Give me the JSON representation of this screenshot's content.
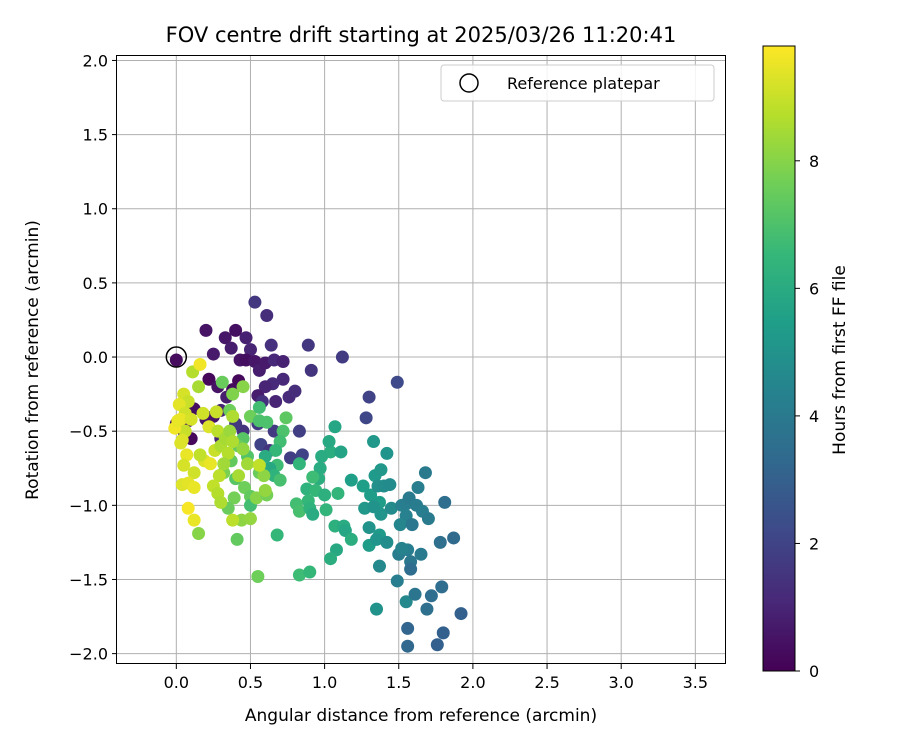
{
  "chart_data": {
    "type": "scatter",
    "title": "FOV centre drift starting at 2025/03/26 11:20:41",
    "xlabel": "Angular distance from reference (arcmin)",
    "ylabel": "Rotation from reference (arcmin)",
    "xlim": [
      -0.4,
      3.7
    ],
    "ylim": [
      -2.07,
      2.03
    ],
    "xticks": [
      0.0,
      0.5,
      1.0,
      1.5,
      2.0,
      2.5,
      3.0,
      3.5
    ],
    "xtick_labels": [
      "0.0",
      "0.5",
      "1.0",
      "1.5",
      "2.0",
      "2.5",
      "3.0",
      "3.5"
    ],
    "yticks": [
      2.0,
      1.5,
      1.0,
      0.5,
      0.0,
      -0.5,
      -1.0,
      -1.5,
      -2.0
    ],
    "ytick_labels": [
      "2.0",
      "1.5",
      "1.0",
      "0.5",
      "0.0",
      "−0.5",
      "−1.0",
      "−1.5",
      "−2.0"
    ],
    "grid": true,
    "legend": {
      "position": "top-right",
      "entries": [
        "Reference platepar"
      ]
    },
    "reference_point": {
      "name": "Reference platepar",
      "x": 0.0,
      "y": 0.0
    },
    "colorbar": {
      "label": "Hours from first FF file",
      "range": [
        0,
        9.8
      ],
      "ticks": [
        0,
        2,
        4,
        6,
        8
      ],
      "tick_labels": [
        "0",
        "2",
        "4",
        "6",
        "8"
      ],
      "colormap": "viridis"
    },
    "colormap_stops": [
      "#440154",
      "#482878",
      "#3e4989",
      "#31688e",
      "#26828e",
      "#1f9e89",
      "#35b779",
      "#6ece58",
      "#b5de2b",
      "#fde725"
    ],
    "points": [
      [
        0.0,
        -0.02,
        0.3
      ],
      [
        0.2,
        0.18,
        0.5
      ],
      [
        0.33,
        0.13,
        0.6
      ],
      [
        0.4,
        0.18,
        0.4
      ],
      [
        0.25,
        0.02,
        0.7
      ],
      [
        0.37,
        0.06,
        0.8
      ],
      [
        0.47,
        0.13,
        0.9
      ],
      [
        0.53,
        0.37,
        1.6
      ],
      [
        0.61,
        0.28,
        1.3
      ],
      [
        0.5,
        0.05,
        1.0
      ],
      [
        0.43,
        -0.02,
        0.5
      ],
      [
        0.47,
        -0.02,
        0.4
      ],
      [
        0.53,
        -0.03,
        0.6
      ],
      [
        0.56,
        -0.09,
        0.8
      ],
      [
        0.6,
        -0.04,
        0.7
      ],
      [
        0.64,
        0.08,
        1.4
      ],
      [
        0.66,
        -0.02,
        1.1
      ],
      [
        0.72,
        -0.03,
        0.9
      ],
      [
        0.91,
        -0.09,
        1.5
      ],
      [
        1.12,
        0.0,
        1.7
      ],
      [
        0.89,
        0.08,
        1.6
      ],
      [
        0.72,
        -0.15,
        1.1
      ],
      [
        0.65,
        -0.18,
        1.2
      ],
      [
        0.6,
        -0.2,
        1.0
      ],
      [
        0.55,
        -0.26,
        0.8
      ],
      [
        0.76,
        -0.27,
        1.2
      ],
      [
        0.8,
        -0.23,
        1.3
      ],
      [
        0.67,
        -0.3,
        1.0
      ],
      [
        0.58,
        -0.3,
        1.4
      ],
      [
        0.42,
        -0.16,
        0.2
      ],
      [
        0.38,
        -0.22,
        0.3
      ],
      [
        0.22,
        -0.15,
        0.2
      ],
      [
        0.28,
        -0.2,
        0.5
      ],
      [
        0.3,
        -0.36,
        1.0
      ],
      [
        0.34,
        -0.27,
        0.8
      ],
      [
        0.2,
        -0.42,
        0.6
      ],
      [
        0.25,
        -0.4,
        0.5
      ],
      [
        0.12,
        -0.35,
        0.4
      ],
      [
        0.1,
        -0.55,
        0.2
      ],
      [
        0.05,
        -0.5,
        0.4
      ],
      [
        0.0,
        -0.45,
        0.3
      ],
      [
        0.08,
        -0.43,
        0.6
      ],
      [
        1.49,
        -0.17,
        2.2
      ],
      [
        1.3,
        -0.27,
        2.0
      ],
      [
        1.28,
        -0.41,
        2.1
      ],
      [
        0.66,
        -0.5,
        1.7
      ],
      [
        0.83,
        -0.5,
        1.8
      ],
      [
        0.57,
        -0.59,
        2.0
      ],
      [
        0.63,
        -0.63,
        1.5
      ],
      [
        0.77,
        -0.68,
        1.8
      ],
      [
        0.85,
        -0.66,
        2.0
      ],
      [
        0.55,
        -0.45,
        1.7
      ],
      [
        0.45,
        -0.5,
        1.5
      ],
      [
        0.3,
        -0.55,
        1.1
      ],
      [
        0.4,
        -0.45,
        1.6
      ],
      [
        0.5,
        -0.4,
        7.6
      ],
      [
        0.56,
        -0.43,
        7.0
      ],
      [
        0.74,
        -0.41,
        7.3
      ],
      [
        0.72,
        -0.5,
        7.0
      ],
      [
        0.7,
        -0.57,
        6.8
      ],
      [
        0.67,
        -0.63,
        6.5
      ],
      [
        0.68,
        -0.73,
        6.7
      ],
      [
        0.6,
        -0.67,
        6.0
      ],
      [
        0.63,
        -0.75,
        5.9
      ],
      [
        0.66,
        -0.8,
        6.3
      ],
      [
        0.7,
        -0.83,
        6.9
      ],
      [
        0.45,
        -0.55,
        7.2
      ],
      [
        0.42,
        -0.6,
        7.5
      ],
      [
        0.48,
        -0.67,
        7.1
      ],
      [
        0.37,
        -0.7,
        7.4
      ],
      [
        0.32,
        -0.78,
        7.8
      ],
      [
        0.4,
        -0.82,
        7.2
      ],
      [
        0.46,
        -0.88,
        7.6
      ],
      [
        0.5,
        -0.94,
        7.4
      ],
      [
        0.39,
        -0.95,
        7.7
      ],
      [
        0.35,
        -1.02,
        7.5
      ],
      [
        0.44,
        -1.1,
        8.1
      ],
      [
        0.5,
        -1.09,
        8.2
      ],
      [
        0.41,
        -1.23,
        7.4
      ],
      [
        0.36,
        -0.36,
        7.6
      ],
      [
        0.45,
        -0.2,
        8.0
      ],
      [
        0.38,
        -0.25,
        7.9
      ],
      [
        0.31,
        -0.17,
        7.5
      ],
      [
        0.56,
        -0.34,
        6.8
      ],
      [
        0.61,
        -0.44,
        7.0
      ],
      [
        0.5,
        -1.0,
        6.8
      ],
      [
        0.68,
        -1.2,
        6.5
      ],
      [
        0.55,
        -1.48,
        7.6
      ],
      [
        0.54,
        -0.95,
        8.0
      ],
      [
        0.56,
        -0.78,
        7.5
      ],
      [
        0.59,
        -0.8,
        8.1
      ],
      [
        0.61,
        -0.93,
        7.7
      ],
      [
        0.83,
        -0.72,
        6.4
      ],
      [
        0.97,
        -0.75,
        6.0
      ],
      [
        0.96,
        -0.82,
        6.1
      ],
      [
        1.04,
        -0.64,
        6.1
      ],
      [
        1.07,
        -0.47,
        5.8
      ],
      [
        1.03,
        -0.57,
        5.9
      ],
      [
        1.11,
        -0.64,
        5.7
      ],
      [
        0.98,
        -0.67,
        6.0
      ],
      [
        0.92,
        -0.81,
        6.7
      ],
      [
        0.88,
        -0.89,
        6.3
      ],
      [
        0.94,
        -0.9,
        6.5
      ],
      [
        1.0,
        -0.93,
        6.2
      ],
      [
        1.09,
        -0.92,
        6.4
      ],
      [
        0.89,
        -0.97,
        6.5
      ],
      [
        0.81,
        -0.99,
        6.8
      ],
      [
        0.83,
        -1.04,
        6.9
      ],
      [
        0.9,
        -1.02,
        6.3
      ],
      [
        0.92,
        -1.06,
        6.0
      ],
      [
        1.01,
        -1.03,
        6.4
      ],
      [
        1.07,
        -1.14,
        6.2
      ],
      [
        1.13,
        -1.14,
        6.0
      ],
      [
        1.14,
        -1.17,
        5.8
      ],
      [
        1.08,
        -1.3,
        5.9
      ],
      [
        1.04,
        -1.36,
        6.1
      ],
      [
        1.18,
        -1.23,
        6.1
      ],
      [
        0.83,
        -1.47,
        6.7
      ],
      [
        0.9,
        -1.45,
        6.5
      ],
      [
        1.18,
        -0.83,
        5.5
      ],
      [
        1.26,
        -0.87,
        5.5
      ],
      [
        1.34,
        -0.8,
        5.3
      ],
      [
        1.38,
        -0.76,
        5.2
      ],
      [
        1.31,
        -0.93,
        5.4
      ],
      [
        1.37,
        -0.98,
        5.4
      ],
      [
        1.27,
        -1.02,
        5.2
      ],
      [
        1.33,
        -1.01,
        5.0
      ],
      [
        1.38,
        -1.06,
        5.1
      ],
      [
        1.3,
        -1.15,
        5.0
      ],
      [
        1.37,
        -1.2,
        5.3
      ],
      [
        1.3,
        -1.27,
        5.4
      ],
      [
        1.35,
        -1.23,
        5.1
      ],
      [
        1.33,
        -0.57,
        5.2
      ],
      [
        1.36,
        -0.87,
        4.9
      ],
      [
        1.4,
        -0.87,
        4.8
      ],
      [
        1.45,
        -1.02,
        4.7
      ],
      [
        1.42,
        -1.25,
        4.8
      ],
      [
        1.37,
        -1.41,
        4.6
      ],
      [
        1.35,
        -1.7,
        5.0
      ],
      [
        1.42,
        -0.65,
        5.1
      ],
      [
        1.52,
        -1.0,
        4.3
      ],
      [
        1.55,
        -0.99,
        4.2
      ],
      [
        1.57,
        -0.95,
        4.0
      ],
      [
        1.62,
        -1.0,
        4.1
      ],
      [
        1.63,
        -0.88,
        4.2
      ],
      [
        1.68,
        -0.78,
        4.0
      ],
      [
        1.55,
        -1.07,
        4.3
      ],
      [
        1.51,
        -1.13,
        4.5
      ],
      [
        1.66,
        -1.04,
        4.2
      ],
      [
        1.7,
        -1.09,
        4.0
      ],
      [
        1.59,
        -1.13,
        3.9
      ],
      [
        1.56,
        -1.3,
        4.2
      ],
      [
        1.5,
        -1.33,
        4.1
      ],
      [
        1.52,
        -1.29,
        4.4
      ],
      [
        1.58,
        -1.38,
        3.9
      ],
      [
        1.65,
        -1.33,
        4.0
      ],
      [
        1.49,
        -1.51,
        4.2
      ],
      [
        1.55,
        -1.65,
        4.6
      ],
      [
        1.61,
        -1.6,
        3.8
      ],
      [
        1.69,
        -1.7,
        3.6
      ],
      [
        1.72,
        -1.61,
        3.5
      ],
      [
        1.78,
        -1.25,
        3.6
      ],
      [
        1.79,
        -1.55,
        3.5
      ],
      [
        1.81,
        -0.98,
        3.5
      ],
      [
        1.87,
        -1.22,
        3.4
      ],
      [
        1.8,
        -1.86,
        3.0
      ],
      [
        1.76,
        -1.94,
        3.0
      ],
      [
        1.92,
        -1.73,
        3.0
      ],
      [
        1.56,
        -1.83,
        3.2
      ],
      [
        1.56,
        -1.95,
        3.3
      ],
      [
        1.58,
        -1.43,
        3.5
      ],
      [
        1.44,
        -0.86,
        4.7
      ],
      [
        0.11,
        -0.1,
        8.7
      ],
      [
        0.15,
        -0.2,
        8.5
      ],
      [
        0.16,
        -0.05,
        9.6
      ],
      [
        0.05,
        -0.25,
        9.2
      ],
      [
        0.08,
        -0.3,
        9.0
      ],
      [
        0.02,
        -0.32,
        9.4
      ],
      [
        0.06,
        -0.38,
        9.1
      ],
      [
        0.03,
        -0.42,
        9.5
      ],
      [
        0.1,
        -0.42,
        9.2
      ],
      [
        0.06,
        -0.5,
        9.0
      ],
      [
        0.03,
        -0.58,
        9.3
      ],
      [
        0.07,
        -0.66,
        9.5
      ],
      [
        0.05,
        -0.73,
        9.2
      ],
      [
        0.12,
        -0.78,
        9.1
      ],
      [
        0.19,
        -0.7,
        9.3
      ],
      [
        0.23,
        -0.72,
        9.5
      ],
      [
        0.16,
        -0.66,
        8.9
      ],
      [
        0.26,
        -0.63,
        9.0
      ],
      [
        0.22,
        -0.47,
        9.3
      ],
      [
        0.28,
        -0.5,
        8.8
      ],
      [
        0.3,
        -0.6,
        8.6
      ],
      [
        0.33,
        -0.55,
        8.5
      ],
      [
        0.36,
        -0.5,
        8.3
      ],
      [
        0.38,
        -0.57,
        8.6
      ],
      [
        0.35,
        -0.65,
        8.7
      ],
      [
        0.32,
        -0.72,
        8.4
      ],
      [
        0.29,
        -0.8,
        8.8
      ],
      [
        0.25,
        -0.87,
        8.9
      ],
      [
        0.28,
        -0.92,
        8.7
      ],
      [
        0.3,
        -0.98,
        8.6
      ],
      [
        0.04,
        -0.86,
        9.3
      ],
      [
        0.08,
        -0.85,
        9.4
      ],
      [
        0.12,
        -0.88,
        9.5
      ],
      [
        0.08,
        -1.02,
        9.7
      ],
      [
        0.12,
        -1.1,
        9.5
      ],
      [
        0.15,
        -1.19,
        8.0
      ],
      [
        0.18,
        -0.38,
        9.1
      ],
      [
        0.27,
        -0.37,
        9.0
      ],
      [
        0.38,
        -0.4,
        8.6
      ],
      [
        0.45,
        -0.62,
        8.2
      ],
      [
        0.48,
        -0.72,
        8.4
      ],
      [
        0.56,
        -0.73,
        8.9
      ],
      [
        0.6,
        -0.9,
        8.2
      ],
      [
        0.38,
        -1.1,
        8.8
      ],
      [
        0.42,
        -0.8,
        8.5
      ],
      [
        -0.01,
        -0.48,
        9.6
      ],
      [
        0.01,
        -0.43,
        9.5
      ],
      [
        0.04,
        -0.56,
        9.3
      ]
    ]
  }
}
